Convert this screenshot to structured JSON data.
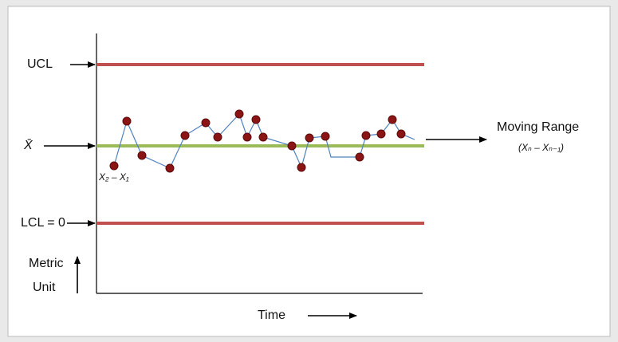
{
  "labels": {
    "ucl": "UCL",
    "mean": "X̄",
    "lcl": "LCL = 0",
    "y_axis": [
      "Metric",
      "Unit"
    ],
    "x_axis": "Time",
    "moving_range": "Moving Range",
    "moving_range_formula": "(Xₙ – Xₙ₋₁)",
    "first_range": "X₂ – X₁"
  }
}
